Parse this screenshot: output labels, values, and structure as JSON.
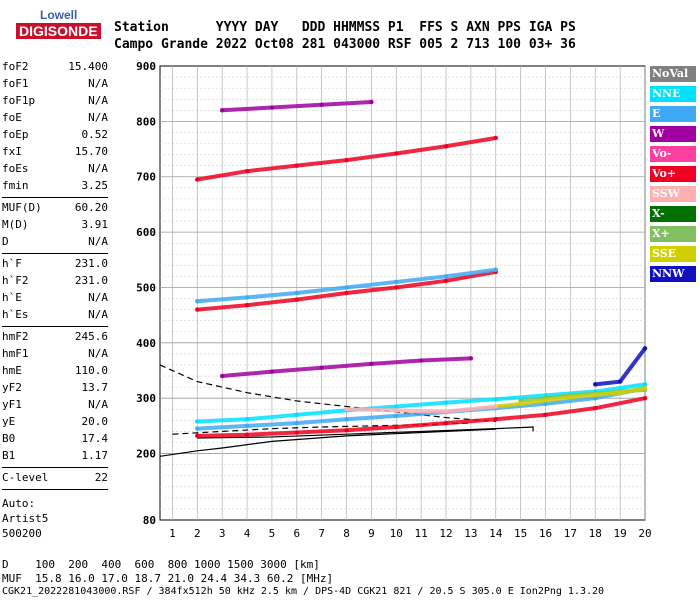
{
  "logo": {
    "line1": "Lowell",
    "line2": "DIGISONDE"
  },
  "header": {
    "labels": "Station      YYYY DAY   DDD HHMMSS P1  FFS S AXN PPS IGA PS",
    "values": "Campo Grande 2022 Oct08 281 043000 RSF 005 2 713 100 03+ 36"
  },
  "params": [
    [
      {
        "name": "foF2",
        "value": "15.400"
      },
      {
        "name": "foF1",
        "value": "N/A"
      },
      {
        "name": "foF1p",
        "value": "N/A"
      },
      {
        "name": "foE",
        "value": "N/A"
      },
      {
        "name": "foEp",
        "value": "0.52"
      },
      {
        "name": "fxI",
        "value": "15.70"
      },
      {
        "name": "foEs",
        "value": "N/A"
      },
      {
        "name": "fmin",
        "value": "3.25"
      }
    ],
    [
      {
        "name": "MUF(D)",
        "value": "60.20"
      },
      {
        "name": "M(D)",
        "value": "3.91"
      },
      {
        "name": "D",
        "value": "N/A"
      }
    ],
    [
      {
        "name": "h`F",
        "value": "231.0"
      },
      {
        "name": "h`F2",
        "value": "231.0"
      },
      {
        "name": "h`E",
        "value": "N/A"
      },
      {
        "name": "h`Es",
        "value": "N/A"
      }
    ],
    [
      {
        "name": "hmF2",
        "value": "245.6"
      },
      {
        "name": "hmF1",
        "value": "N/A"
      },
      {
        "name": "hmE",
        "value": "110.0"
      },
      {
        "name": "yF2",
        "value": "13.7"
      },
      {
        "name": "yF1",
        "value": "N/A"
      },
      {
        "name": "yE",
        "value": "20.0"
      },
      {
        "name": "B0",
        "value": "17.4"
      },
      {
        "name": "B1",
        "value": "1.17"
      }
    ],
    [
      {
        "name": "C-level",
        "value": "22"
      }
    ]
  ],
  "auto": [
    "Auto:",
    "Artist5",
    "500200"
  ],
  "legend": [
    {
      "label": "NoVal",
      "color": "#808080"
    },
    {
      "label": "NNE",
      "color": "#00e0ff"
    },
    {
      "label": "E",
      "color": "#3fa9f5"
    },
    {
      "label": "W",
      "color": "#a000a0"
    },
    {
      "label": "Vo-",
      "color": "#ff3fa0"
    },
    {
      "label": "Vo+",
      "color": "#ee0020"
    },
    {
      "label": "SSW",
      "color": "#ffb0b0"
    },
    {
      "label": "X-",
      "color": "#007000"
    },
    {
      "label": "X+",
      "color": "#80c060"
    },
    {
      "label": "SSE",
      "color": "#d0d000"
    },
    {
      "label": "NNW",
      "color": "#1010c0"
    }
  ],
  "footer": {
    "d_row": "D    100  200  400  600  800 1000 1500 3000 [km]",
    "muf_row": "MUF  15.8 16.0 17.0 18.7 21.0 24.4 34.3 60.2 [MHz]",
    "info": "CGK21_2022281043000.RSF / 384fx512h 50 kHz 2.5 km / DPS-4D CGK21 821 / 20.5 S 305.0 E Ion2Png 1.3.20"
  },
  "chart_data": {
    "type": "scatter",
    "xlim": [
      0.5,
      20
    ],
    "ylim": [
      80,
      900
    ],
    "x_ticks": [
      1,
      2,
      3,
      4,
      5,
      6,
      7,
      8,
      9,
      10,
      11,
      12,
      13,
      14,
      15,
      16,
      17,
      18,
      19,
      20
    ],
    "y_ticks": [
      80,
      200,
      300,
      400,
      500,
      600,
      700,
      800,
      900
    ],
    "y_minor_step": 20,
    "grid": true,
    "traces": [
      {
        "name": "Vo+",
        "color": "#ee0020",
        "x": [
          2,
          4,
          6,
          8,
          10,
          12,
          14,
          16,
          18,
          20
        ],
        "y": [
          232,
          234,
          238,
          242,
          248,
          255,
          262,
          270,
          282,
          300
        ]
      },
      {
        "name": "E",
        "color": "#3fa9f5",
        "x": [
          2,
          4,
          6,
          8,
          10,
          12,
          14,
          16,
          18,
          20
        ],
        "y": [
          245,
          250,
          255,
          262,
          268,
          275,
          282,
          290,
          300,
          318
        ]
      },
      {
        "name": "NNE",
        "color": "#00e0ff",
        "x": [
          2,
          4,
          6,
          8,
          10,
          12,
          14,
          16,
          18,
          20
        ],
        "y": [
          258,
          262,
          270,
          278,
          285,
          292,
          298,
          305,
          312,
          325
        ]
      },
      {
        "name": "X+",
        "color": "#80c060",
        "x": [
          15,
          16,
          17,
          18,
          19,
          20
        ],
        "y": [
          295,
          300,
          305,
          308,
          312,
          315
        ]
      },
      {
        "name": "SSE",
        "color": "#d0d000",
        "x": [
          14,
          15,
          16,
          17,
          18,
          19,
          20
        ],
        "y": [
          285,
          290,
          296,
          302,
          306,
          310,
          318
        ]
      },
      {
        "name": "W",
        "color": "#a000a0",
        "x": [
          3,
          5,
          7,
          9,
          11,
          13
        ],
        "y": [
          340,
          348,
          355,
          362,
          368,
          372
        ]
      },
      {
        "name": "SSW",
        "color": "#ffb0b0",
        "x": [
          8,
          10,
          12,
          14
        ],
        "y": [
          280,
          278,
          276,
          285
        ]
      },
      {
        "name": "Vo+",
        "color": "#ee0020",
        "x": [
          2,
          4,
          6,
          8,
          10,
          12,
          14
        ],
        "y": [
          460,
          468,
          478,
          490,
          500,
          512,
          528
        ]
      },
      {
        "name": "E",
        "color": "#3fa9f5",
        "x": [
          2,
          4,
          6,
          8,
          10,
          12,
          14
        ],
        "y": [
          475,
          482,
          490,
          500,
          510,
          520,
          532
        ]
      },
      {
        "name": "Vo+",
        "color": "#ee0020",
        "x": [
          2,
          4,
          6,
          8,
          10,
          12,
          14
        ],
        "y": [
          695,
          710,
          720,
          730,
          742,
          755,
          770
        ]
      },
      {
        "name": "W",
        "color": "#a000a0",
        "x": [
          3,
          5,
          7,
          9
        ],
        "y": [
          820,
          825,
          830,
          835
        ]
      },
      {
        "name": "NNW",
        "color": "#1010c0",
        "x": [
          18,
          19,
          20
        ],
        "y": [
          325,
          330,
          390
        ]
      }
    ],
    "lines": [
      {
        "style": "solid",
        "x": [
          2,
          5,
          8,
          11,
          14,
          15.5,
          15.5
        ],
        "y": [
          228,
          230,
          235,
          240,
          245,
          248,
          240
        ]
      },
      {
        "style": "solid",
        "x": [
          0.5,
          2,
          3,
          5,
          8,
          11,
          14
        ],
        "y": [
          195,
          205,
          210,
          222,
          232,
          238,
          244
        ]
      },
      {
        "style": "dashed",
        "x": [
          0.5,
          2,
          4,
          6,
          8,
          10,
          12,
          14
        ],
        "y": [
          360,
          330,
          310,
          295,
          285,
          275,
          265,
          258
        ]
      },
      {
        "style": "dashed",
        "x": [
          1,
          3,
          5,
          7,
          9,
          11,
          13
        ],
        "y": [
          235,
          240,
          245,
          248,
          250,
          252,
          255
        ]
      }
    ]
  }
}
